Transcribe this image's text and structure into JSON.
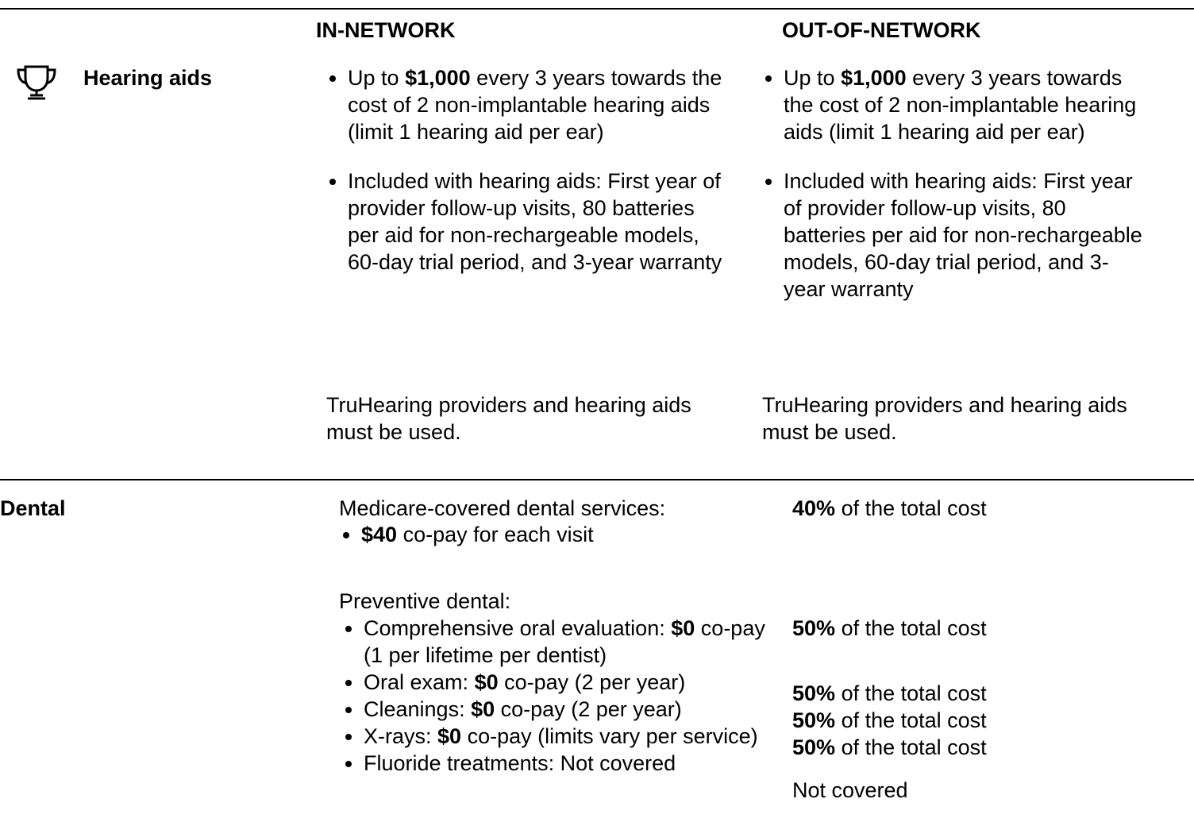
{
  "header": {
    "in_network": "IN-NETWORK",
    "out_of_network": "OUT-OF-NETWORK"
  },
  "rows": [
    {
      "label": "Hearing aids",
      "in_network": {
        "bullets": [
          {
            "pre": "Up to",
            "bold": "$1,000",
            "post": "every 3 years towards the cost of 2 non-implantable hearing aids (limit 1 hearing aid per ear)"
          },
          {
            "text": "Included with hearing aids: First year of provider follow-up visits, 80 batteries per aid for non-rechargeable models, 60-day trial period, and 3-year warranty"
          }
        ],
        "note": "TruHearing providers and hearing aids must be used."
      },
      "out_of_network": {
        "bullets": [
          {
            "pre": "Up to",
            "bold": "$1,000",
            "post": "every 3 years towards the cost of 2 non-implantable hearing aids (limit 1 hearing aid per ear)"
          },
          {
            "text": "Included with hearing aids: First year of provider follow-up visits, 80 batteries per aid for non-rechargeable models, 60-day trial period, and 3-year warranty"
          }
        ],
        "note": "TruHearing providers and hearing aids must be used."
      }
    },
    {
      "label": "Dental",
      "in_network": {
        "medicare_heading": "Medicare-covered dental services:",
        "medicare_bullets": [
          {
            "bold": "$40",
            "post": "co-pay for each visit"
          }
        ],
        "preventive_heading": "Preventive dental:",
        "preventive_bullets": [
          {
            "pre": "Comprehensive oral evaluation:",
            "bold": "$0",
            "post": "co-pay (1 per lifetime per dentist)"
          },
          {
            "pre": "Oral exam:",
            "bold": "$0",
            "post": "co-pay (2 per year)"
          },
          {
            "pre": "Cleanings:",
            "bold": "$0",
            "post": "co-pay (2 per year)"
          },
          {
            "pre": "X-rays:",
            "bold": "$0",
            "post": "co-pay (limits vary per service)"
          },
          {
            "text": "Fluoride treatments: Not covered"
          }
        ]
      },
      "out_of_network": {
        "medicare": {
          "bold": "40%",
          "post": "of the total cost"
        },
        "preventive": [
          {
            "bold": "50%",
            "post": "of the total cost"
          },
          {
            "bold": "50%",
            "post": "of the total cost"
          },
          {
            "bold": "50%",
            "post": "of the total cost"
          },
          {
            "bold": "50%",
            "post": "of the total cost"
          },
          {
            "text": "Not covered"
          }
        ]
      }
    }
  ]
}
